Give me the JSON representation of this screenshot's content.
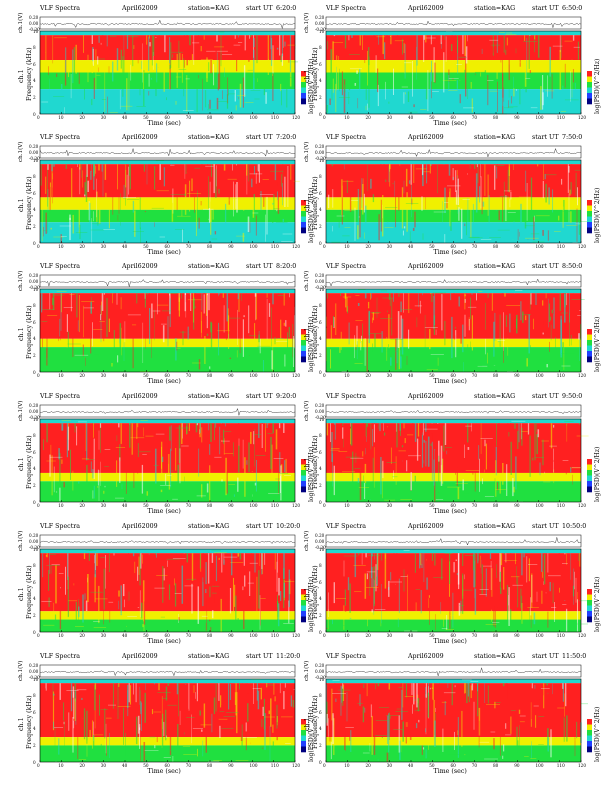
{
  "colors": {
    "red": "#ff2020",
    "yellow": "#f0f000",
    "green": "#20e040",
    "cyan": "#20d8d0",
    "white": "#ffffff",
    "frame": "#000000",
    "trace": "#404040"
  },
  "common": {
    "title": "VLF Spectra",
    "date": "April62009",
    "station": "station=KAG",
    "start_prefix": "start  UT",
    "xlabel": "Time  (sec)",
    "ylabel_ts": "ch.1(V)",
    "ylabel_sp_top": "ch.1",
    "ylabel_sp": "Frequency  (kHz)",
    "colorbar_label": "log(PSD)(V^2/Hz)",
    "ts_ticks": [
      "0.20",
      "0.00",
      "-0.20"
    ],
    "freq_ticks": [
      "10",
      "8",
      "6",
      "4",
      "2",
      "0"
    ],
    "time_ticks": [
      "0",
      "10",
      "20",
      "30",
      "40",
      "50",
      "60",
      "70",
      "80",
      "90",
      "100",
      "110",
      "120"
    ]
  },
  "chart_data": [
    {
      "type": "heatmap",
      "title": "VLF Spectra",
      "start_ut": "6:20:0",
      "xlabel": "Time  (sec)",
      "ylabel": "Frequency  (kHz)",
      "xlim": [
        0,
        120
      ],
      "ylim": [
        0,
        10
      ],
      "bands": {
        "red": [
          6.5,
          9.5
        ],
        "yellow": [
          5,
          6.5
        ],
        "green": [
          3,
          5
        ],
        "cyan": [
          0,
          3
        ]
      }
    },
    {
      "type": "heatmap",
      "title": "VLF Spectra",
      "start_ut": "6:50:0",
      "xlabel": "Time  (sec)",
      "ylabel": "Frequency  (kHz)",
      "xlim": [
        0,
        120
      ],
      "ylim": [
        0,
        10
      ],
      "bands": {
        "red": [
          6.5,
          9.5
        ],
        "yellow": [
          5,
          6.5
        ],
        "green": [
          3,
          5
        ],
        "cyan": [
          0,
          3
        ]
      }
    },
    {
      "type": "heatmap",
      "title": "VLF Spectra",
      "start_ut": "7:20:0",
      "xlabel": "Time  (sec)",
      "ylabel": "Frequency  (kHz)",
      "xlim": [
        0,
        120
      ],
      "ylim": [
        0,
        10
      ],
      "bands": {
        "red": [
          5.5,
          9.5
        ],
        "yellow": [
          4,
          5.5
        ],
        "green": [
          2.5,
          4
        ],
        "cyan": [
          0,
          2.5
        ]
      }
    },
    {
      "type": "heatmap",
      "title": "VLF Spectra",
      "start_ut": "7:50:0",
      "xlabel": "Time  (sec)",
      "ylabel": "Frequency  (kHz)",
      "xlim": [
        0,
        120
      ],
      "ylim": [
        0,
        10
      ],
      "bands": {
        "red": [
          5.5,
          9.5
        ],
        "yellow": [
          4,
          5.5
        ],
        "green": [
          2.5,
          4
        ],
        "cyan": [
          0,
          2.5
        ]
      }
    },
    {
      "type": "heatmap",
      "title": "VLF Spectra",
      "start_ut": "8:20:0",
      "xlabel": "Time  (sec)",
      "ylabel": "Frequency  (kHz)",
      "xlim": [
        0,
        120
      ],
      "ylim": [
        0,
        10
      ],
      "bands": {
        "red": [
          4,
          9.5
        ],
        "yellow": [
          3,
          4
        ],
        "green": [
          0,
          3
        ],
        "cyan": [
          0,
          0
        ]
      }
    },
    {
      "type": "heatmap",
      "title": "VLF Spectra",
      "start_ut": "8:50:0",
      "xlabel": "Time  (sec)",
      "ylabel": "Frequency  (kHz)",
      "xlim": [
        0,
        120
      ],
      "ylim": [
        0,
        10
      ],
      "bands": {
        "red": [
          4,
          9.5
        ],
        "yellow": [
          3,
          4
        ],
        "green": [
          0,
          3
        ],
        "cyan": [
          0,
          0
        ]
      }
    },
    {
      "type": "heatmap",
      "title": "VLF Spectra",
      "start_ut": "9:20:0",
      "xlabel": "Time  (sec)",
      "ylabel": "Frequency  (kHz)",
      "xlim": [
        0,
        120
      ],
      "ylim": [
        0,
        10
      ],
      "bands": {
        "red": [
          3.5,
          9.5
        ],
        "yellow": [
          2.5,
          3.5
        ],
        "green": [
          0,
          2.5
        ],
        "cyan": [
          0,
          0
        ]
      }
    },
    {
      "type": "heatmap",
      "title": "VLF Spectra",
      "start_ut": "9:50:0",
      "xlabel": "Time  (sec)",
      "ylabel": "Frequency  (kHz)",
      "xlim": [
        0,
        120
      ],
      "ylim": [
        0,
        10
      ],
      "bands": {
        "red": [
          3.5,
          9.5
        ],
        "yellow": [
          2.5,
          3.5
        ],
        "green": [
          0,
          2.5
        ],
        "cyan": [
          0,
          0
        ]
      }
    },
    {
      "type": "heatmap",
      "title": "VLF Spectra",
      "start_ut": "10:20:0",
      "xlabel": "Time  (sec)",
      "ylabel": "Frequency  (kHz)",
      "xlim": [
        0,
        120
      ],
      "ylim": [
        0,
        10
      ],
      "bands": {
        "red": [
          2.5,
          9.5
        ],
        "yellow": [
          1.5,
          2.5
        ],
        "green": [
          0,
          1.5
        ],
        "cyan": [
          0,
          0
        ]
      }
    },
    {
      "type": "heatmap",
      "title": "VLF Spectra",
      "start_ut": "10:50:0",
      "xlabel": "Time  (sec)",
      "ylabel": "Frequency  (kHz)",
      "xlim": [
        0,
        120
      ],
      "ylim": [
        0,
        10
      ],
      "bands": {
        "red": [
          2.5,
          9.5
        ],
        "yellow": [
          1.5,
          2.5
        ],
        "green": [
          0,
          1.5
        ],
        "cyan": [
          0,
          0
        ]
      }
    },
    {
      "type": "heatmap",
      "title": "VLF Spectra",
      "start_ut": "11:20:0",
      "xlabel": "Time  (sec)",
      "ylabel": "Frequency  (kHz)",
      "xlim": [
        0,
        120
      ],
      "ylim": [
        0,
        10
      ],
      "bands": {
        "red": [
          3,
          9.5
        ],
        "yellow": [
          2,
          3
        ],
        "green": [
          0,
          2
        ],
        "cyan": [
          0,
          0
        ]
      }
    },
    {
      "type": "heatmap",
      "title": "VLF Spectra",
      "start_ut": "11:50:0",
      "xlabel": "Time  (sec)",
      "ylabel": "Frequency  (kHz)",
      "xlim": [
        0,
        120
      ],
      "ylim": [
        0,
        10
      ],
      "bands": {
        "red": [
          3,
          9.5
        ],
        "yellow": [
          2,
          3
        ],
        "green": [
          0,
          2
        ],
        "cyan": [
          0,
          0
        ]
      }
    }
  ]
}
